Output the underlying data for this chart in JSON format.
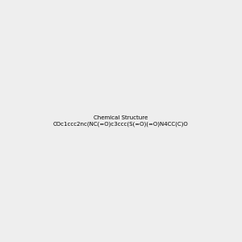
{
  "smiles": "COc1ccc2nc(NC(=O)c3ccc(S(=O)(=O)N4CC(C)OC(C)C4)cc3)sc2c1Cl",
  "image_size": 300,
  "background_color": "#eeeeee"
}
